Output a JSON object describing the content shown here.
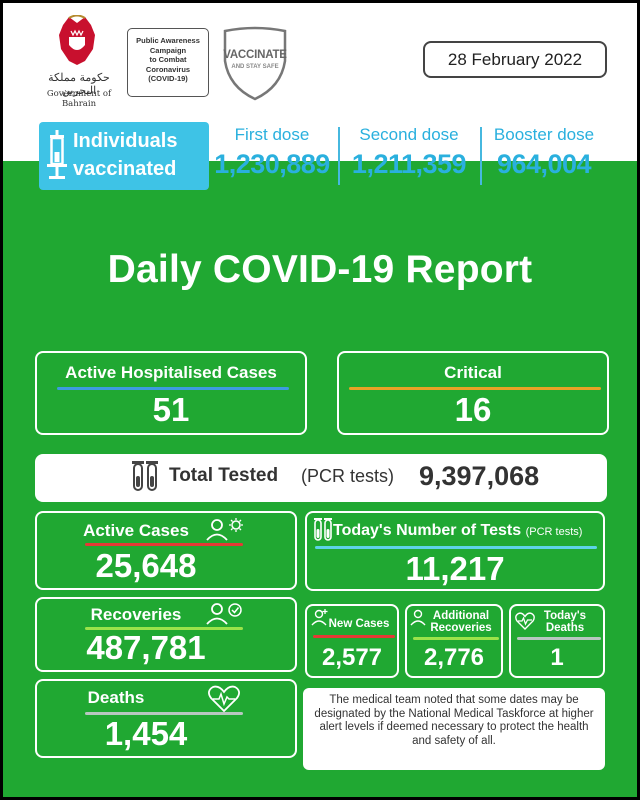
{
  "header": {
    "gov_name_ar": "حكومة مملكة البحرين",
    "gov_name_en": "Government of Bahrain",
    "campaign_lines": [
      "Public Awareness",
      "Campaign",
      "to Combat",
      "Coronavirus",
      "(COVID-19)"
    ],
    "vaccinate_title": "VACCINATE",
    "vaccinate_sub": "AND STAY SAFE",
    "date": "28 February 2022"
  },
  "vaccination": {
    "label_line1": "Individuals",
    "label_line2": "vaccinated",
    "doses": [
      {
        "label": "First dose",
        "value": "1,230,889"
      },
      {
        "label": "Second dose",
        "value": "1,211,359"
      },
      {
        "label": "Booster dose",
        "value": "964,004"
      }
    ]
  },
  "report_title": "Daily COVID-19 Report",
  "hospital": {
    "active_hospitalised_label": "Active Hospitalised Cases",
    "active_hospitalised_value": "51",
    "critical_label": "Critical",
    "critical_value": "16"
  },
  "total_tested": {
    "label": "Total Tested",
    "paren": "(PCR tests)",
    "value": "9,397,068"
  },
  "stats": {
    "active_cases_label": "Active Cases",
    "active_cases_value": "25,648",
    "recoveries_label": "Recoveries",
    "recoveries_value": "487,781",
    "deaths_label": "Deaths",
    "deaths_value": "1,454"
  },
  "tests_today": {
    "label": "Today's Number of Tests",
    "paren": "(PCR tests)",
    "value": "11,217"
  },
  "daily": {
    "new_cases_label": "New Cases",
    "new_cases_value": "2,577",
    "additional_recoveries_line1": "Additional",
    "additional_recoveries_line2": "Recoveries",
    "additional_recoveries_value": "2,776",
    "todays_deaths_line1": "Today's",
    "todays_deaths_line2": "Deaths",
    "todays_deaths_value": "1"
  },
  "note": "The medical team noted that some dates may be designated by the National Medical Taskforce at higher alert levels if deemed necessary to protect the health and safety of all.",
  "colors": {
    "green": "#20a832",
    "cyan": "#3ec3e6",
    "dose_text": "#2ab0de",
    "line_blue": "#3d9be0",
    "line_orange": "#e8a226",
    "line_red": "#e53935",
    "line_lime": "#9be34a",
    "line_gray": "#b8c7c0",
    "line_cyan": "#5ed3e8"
  }
}
